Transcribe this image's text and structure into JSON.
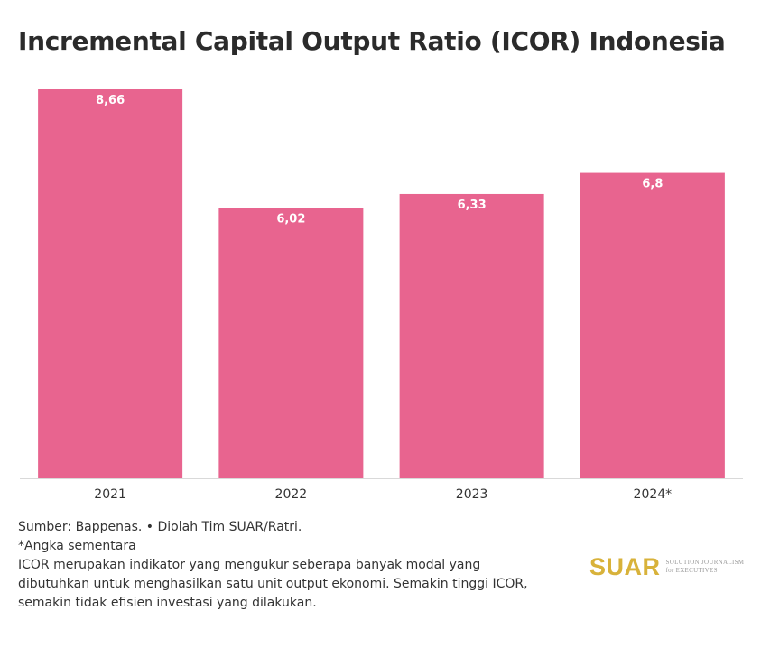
{
  "title": "Incremental Capital Output Ratio (ICOR) Indonesia",
  "chart_data": {
    "type": "bar",
    "title": "Incremental Capital Output Ratio (ICOR) Indonesia",
    "categories": [
      "2021",
      "2022",
      "2023",
      "2024*"
    ],
    "values": [
      8.66,
      6.02,
      6.33,
      6.8
    ],
    "data_labels": [
      "8,66",
      "6,02",
      "6,33",
      "6,8"
    ],
    "xlabel": "",
    "ylabel": "",
    "ylim": [
      0,
      8.66
    ],
    "grid": false,
    "bar_color": "#e8648f",
    "axis_color": "#d9d9d9"
  },
  "footer": {
    "source": "Sumber: Bappenas. • Diolah Tim SUAR/Ratri.",
    "note": "*Angka sementara",
    "description": [
      "ICOR merupakan indikator yang mengukur seberapa banyak modal yang",
      "dibutuhkan untuk menghasilkan satu unit output ekonomi. Semakin tinggi ICOR,",
      "semakin tidak efisien investasi yang dilakukan."
    ]
  },
  "logo": {
    "word": "SUAR",
    "tagline_1": "SOLUTION JOURNALISM",
    "tagline_2": "for EXECUTIVES",
    "color": "#d8b23a"
  }
}
